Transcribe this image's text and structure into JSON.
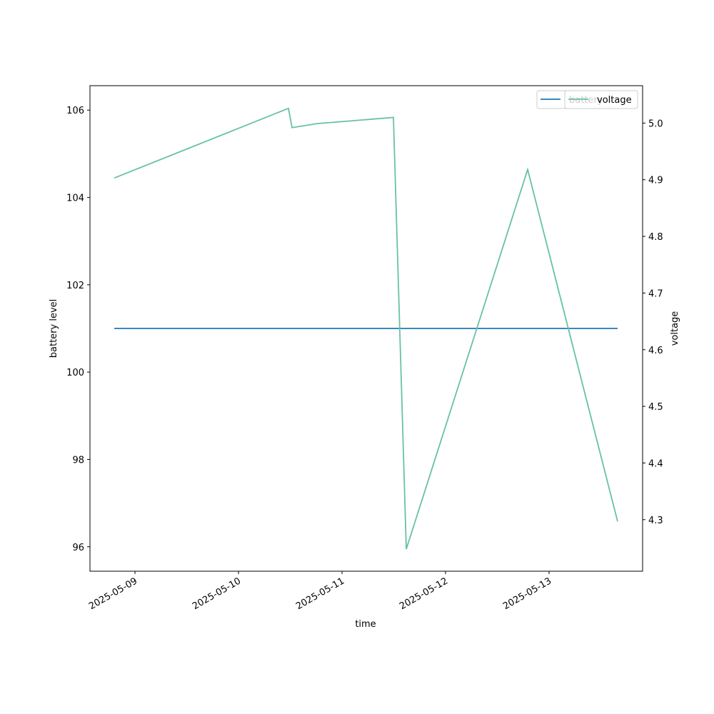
{
  "chart_data": {
    "type": "line",
    "xlabel": "time",
    "ylabel": "battery level",
    "y2label": "voltage",
    "x": [
      "2025-05-08T19:12",
      "2025-05-10T11:35",
      "2025-05-10T12:25",
      "2025-05-10T18:13",
      "2025-05-11T11:55",
      "2025-05-11T14:54",
      "2025-05-12T19:02",
      "2025-05-13T15:53"
    ],
    "xlim": [
      "2025-05-08T13:34",
      "2025-05-13T21:41"
    ],
    "xticks": [
      {
        "value": "2025-05-09T00:00",
        "label": "2025-05-09"
      },
      {
        "value": "2025-05-10T00:00",
        "label": "2025-05-10"
      },
      {
        "value": "2025-05-11T00:00",
        "label": "2025-05-11"
      },
      {
        "value": "2025-05-12T00:00",
        "label": "2025-05-12"
      },
      {
        "value": "2025-05-13T00:00",
        "label": "2025-05-13"
      }
    ],
    "ylim": [
      95.44,
      106.56
    ],
    "yticks": [
      96,
      98,
      100,
      102,
      104,
      106
    ],
    "y2lim": [
      4.209,
      5.066
    ],
    "y2ticks": [
      4.3,
      4.4,
      4.5,
      4.6,
      4.7,
      4.8,
      4.9,
      {
        "value": 5.0,
        "label": "5.0"
      }
    ],
    "series": [
      {
        "name": "battery",
        "color": "#1f77b4",
        "values": [
          101,
          101,
          101,
          101,
          101,
          101,
          101,
          101
        ]
      },
      {
        "name": "voltage",
        "color": "#66c2a5",
        "axis": "y2",
        "values": [
          4.903,
          5.026,
          4.992,
          4.999,
          5.01,
          4.248,
          4.918,
          4.297
        ]
      }
    ]
  }
}
